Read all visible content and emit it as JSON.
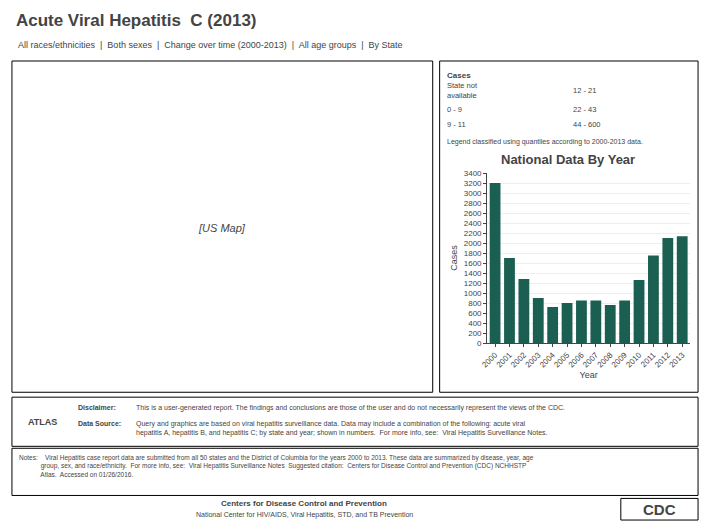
{
  "chart_data": {
    "type": "bar",
    "title": "Acute Viral Hepatitis  C (2013)",
    "subtitle": "All races/ethnicities  |  Both sexes  |  Change over time (2000-2013)  |  All age groups  |  By State",
    "xlabel": "Year",
    "ylabel": "Cases",
    "categories": [
      "2000",
      "2001",
      "2002",
      "2003",
      "2004",
      "2005",
      "2006",
      "2007",
      "2008",
      "2009",
      "2010",
      "2011",
      "2012",
      "2013"
    ],
    "values": [
      3200,
      1700,
      1280,
      900,
      720,
      800,
      850,
      850,
      760,
      850,
      1260,
      1750,
      2100,
      2138
    ],
    "color": "#1b5e52",
    "ylim": [
      0,
      3400
    ],
    "yticks": [
      0,
      200,
      400,
      600,
      800,
      1000,
      1200,
      1400,
      1600,
      1800,
      2000,
      2200,
      2400,
      2600,
      2800,
      3000,
      3200,
      3400
    ],
    "grid": true,
    "annotations": [
      "National Data By Year",
      "Cases",
      "State not\navailable",
      "0 - 9",
      "9 - 11",
      "12 - 21",
      "22 - 43",
      "44 - 600",
      "Legend classified using quantiles according to 2000-2013 data.",
      "[US Map]",
      "ATLAS",
      "Disclaimer:",
      "This is a user-generated report. The findings and conclusions are those of the user and do not necessarily represent the views of the CDC.",
      "Data Source:",
      "Query and graphics are based on viral hepatitis surveillance data. Data may include a combination of the following: acute viral\nhepatitis A, hepatitis B, and hepatitis C; by state and year; shown in numbers.  For more info, see:  Viral Hepatitis Surveillance Notes.",
      "Notes:    Viral Hepatitis case report data are submitted from all 50 states and the District of Columbia for the years 2000 to 2013. These data are summarized by disease, year, age\n            group, sex, and race/ethnicity.  For more info, see:  Viral Hepatitis Surveillance Notes  Suggested citation:  Centers for Disease Control and Prevention (CDC) NCHHSTP\n            Atlas.  Accessed on 01/26/2016.",
      "Centers for Disease Control and Prevention",
      "National Center for HIV/AIDS, Viral Hepatitis, STD, and TB Prevention",
      "CDC"
    ]
  }
}
